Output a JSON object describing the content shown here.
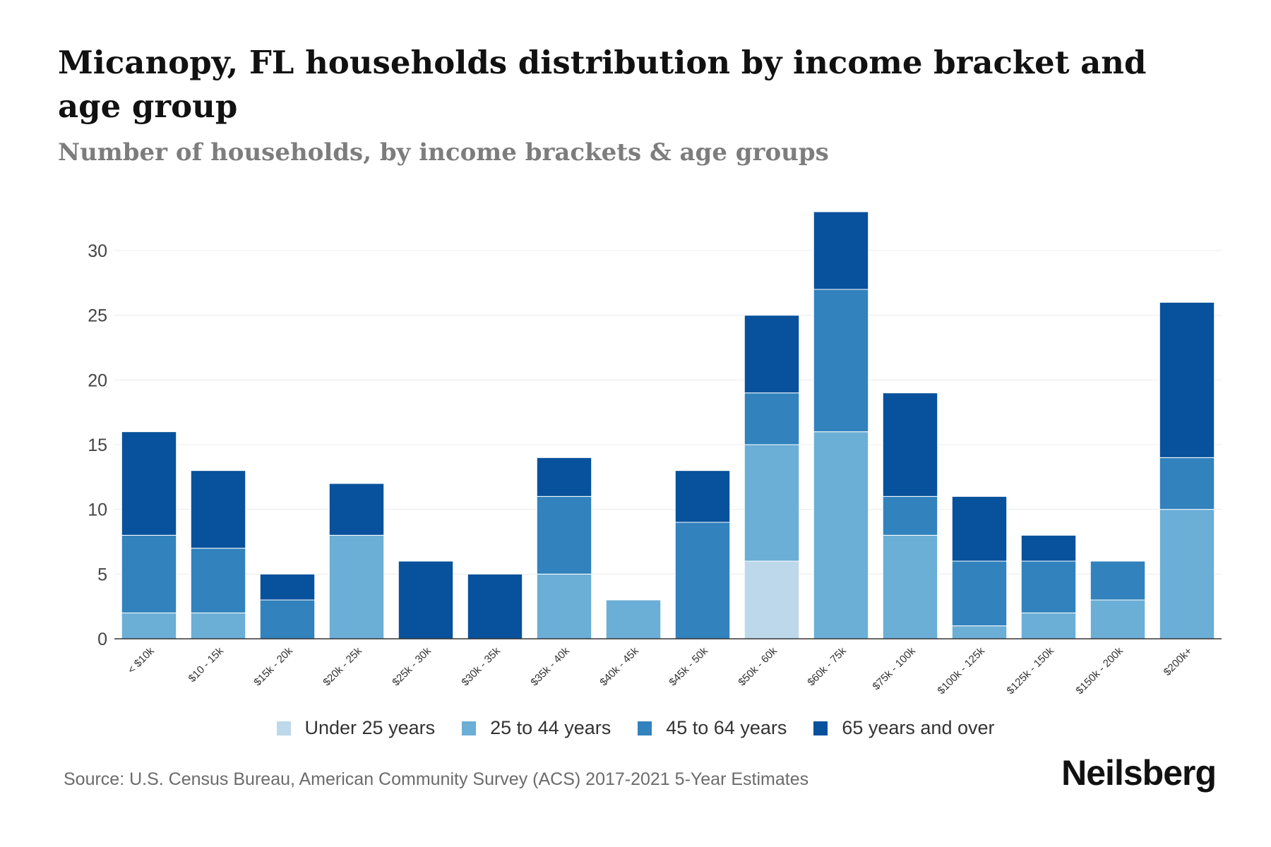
{
  "title": "Micanopy, FL households distribution by income bracket and age group",
  "subtitle": "Number of households, by income brackets & age groups",
  "source": "Source: U.S. Census Bureau, American Community Survey (ACS) 2017-2021 5-Year Estimates",
  "brand": "Neilsberg",
  "colors": {
    "under_25": "#bcd8ea",
    "age_25_44": "#6baed6",
    "age_45_64": "#3182bd",
    "age_65_over": "#08519c",
    "grid": "#ececec",
    "axis": "#333333"
  },
  "chart_data": {
    "type": "bar",
    "stacked": true,
    "title": "Micanopy, FL households distribution by income bracket and age group",
    "subtitle": "Number of households, by income brackets & age groups",
    "xlabel": "",
    "ylabel": "",
    "ylim": [
      0,
      33
    ],
    "yticks": [
      0,
      5,
      10,
      15,
      20,
      25,
      30
    ],
    "grid": true,
    "legend_position": "bottom",
    "categories": [
      "< $10k",
      "$10 - 15k",
      "$15k - 20k",
      "$20k - 25k",
      "$25k - 30k",
      "$30k - 35k",
      "$35k - 40k",
      "$40k - 45k",
      "$45k - 50k",
      "$50k - 60k",
      "$60k - 75k",
      "$75k - 100k",
      "$100k - 125k",
      "$125k - 150k",
      "$150k - 200k",
      "$200k+"
    ],
    "series": [
      {
        "name": "Under 25 years",
        "color": "#bcd8ea",
        "values": [
          0,
          0,
          0,
          0,
          0,
          0,
          0,
          0,
          0,
          6,
          0,
          0,
          0,
          0,
          0,
          0
        ]
      },
      {
        "name": "25 to 44 years",
        "color": "#6baed6",
        "values": [
          2,
          2,
          0,
          8,
          0,
          0,
          5,
          3,
          0,
          9,
          16,
          8,
          1,
          2,
          3,
          10
        ]
      },
      {
        "name": "45 to 64 years",
        "color": "#3182bd",
        "values": [
          6,
          5,
          3,
          0,
          0,
          0,
          6,
          0,
          9,
          4,
          11,
          3,
          5,
          4,
          3,
          4
        ]
      },
      {
        "name": "65 years and over",
        "color": "#08519c",
        "values": [
          8,
          6,
          2,
          4,
          6,
          5,
          3,
          0,
          4,
          6,
          6,
          8,
          5,
          2,
          0,
          12
        ]
      }
    ]
  }
}
